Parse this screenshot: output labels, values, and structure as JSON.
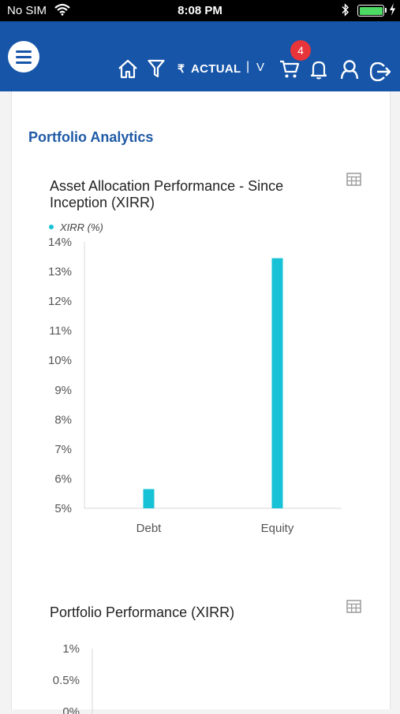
{
  "status_bar": {
    "carrier": "No SIM",
    "time": "8:08 PM"
  },
  "header": {
    "currency_symbol": "₹",
    "view_mode": "ACTUAL",
    "separator": "|",
    "dropdown_label": "V",
    "cart_count": "4",
    "accent_color": "#1655a8",
    "badge_color": "#e8353a"
  },
  "page": {
    "section_title": "Portfolio Analytics"
  },
  "charts": {
    "allocation": {
      "title_line1": "Asset Allocation Performance - Since",
      "title_line2": "Inception (XIRR)",
      "legend": "XIRR (%)"
    },
    "portfolio": {
      "title": "Portfolio Performance (XIRR)"
    }
  },
  "chart_data": [
    {
      "type": "bar",
      "title": "Asset Allocation Performance - Since Inception (XIRR)",
      "categories": [
        "Debt",
        "Equity"
      ],
      "series": [
        {
          "name": "XIRR (%)",
          "values": [
            5.65,
            13.45
          ],
          "color": "#17c2d6"
        }
      ],
      "ylim": [
        5,
        14
      ],
      "yticks": [
        "5%",
        "6%",
        "7%",
        "8%",
        "9%",
        "10%",
        "11%",
        "12%",
        "13%",
        "14%"
      ],
      "legend_position": "top-left"
    },
    {
      "type": "bar",
      "title": "Portfolio Performance (XIRR)",
      "yticks": [
        "1%",
        "0.5%",
        "0%"
      ],
      "ylim": [
        0,
        1
      ]
    }
  ]
}
